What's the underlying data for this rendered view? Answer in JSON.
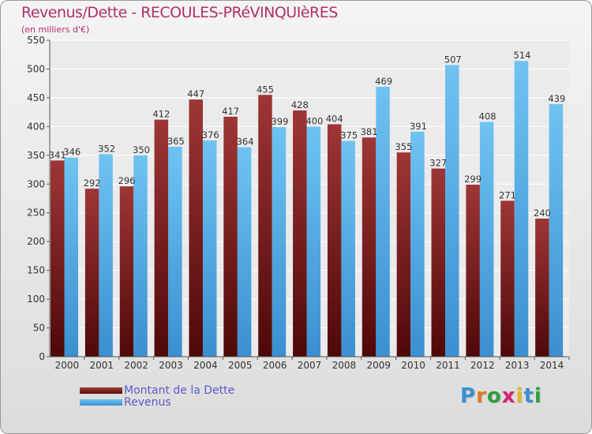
{
  "title": "Revenus/Dette - RECOULES-PRéVINQUIèRES",
  "subtitle": "(en milliers d'€)",
  "legend": {
    "debt": "Montant de la Dette",
    "revenue": "Revenus"
  },
  "logo": {
    "text": "Proxiti"
  },
  "colors": {
    "debt": "#7a1f1f",
    "revenue": "#4aa3e2",
    "title": "#b0306a",
    "legend_text": "#5a5acb"
  },
  "chart_data": {
    "type": "bar",
    "title": "Revenus/Dette - RECOULES-PRéVINQUIèRES",
    "ylabel": "(en milliers d'€)",
    "xlabel": "",
    "ylim": [
      0,
      550
    ],
    "yticks": [
      0,
      50,
      100,
      150,
      200,
      250,
      300,
      350,
      400,
      450,
      500,
      550
    ],
    "grid": true,
    "legend_position": "bottom-left",
    "categories": [
      "2000",
      "2001",
      "2002",
      "2003",
      "2004",
      "2005",
      "2006",
      "2007",
      "2008",
      "2009",
      "2010",
      "2011",
      "2012",
      "2013",
      "2014"
    ],
    "series": [
      {
        "name": "Montant de la Dette",
        "values": [
          341,
          292,
          296,
          412,
          447,
          417,
          455,
          428,
          404,
          381,
          355,
          327,
          299,
          271,
          240
        ]
      },
      {
        "name": "Revenus",
        "values": [
          346,
          352,
          350,
          365,
          376,
          364,
          399,
          400,
          375,
          469,
          391,
          507,
          408,
          514,
          439
        ]
      }
    ]
  }
}
